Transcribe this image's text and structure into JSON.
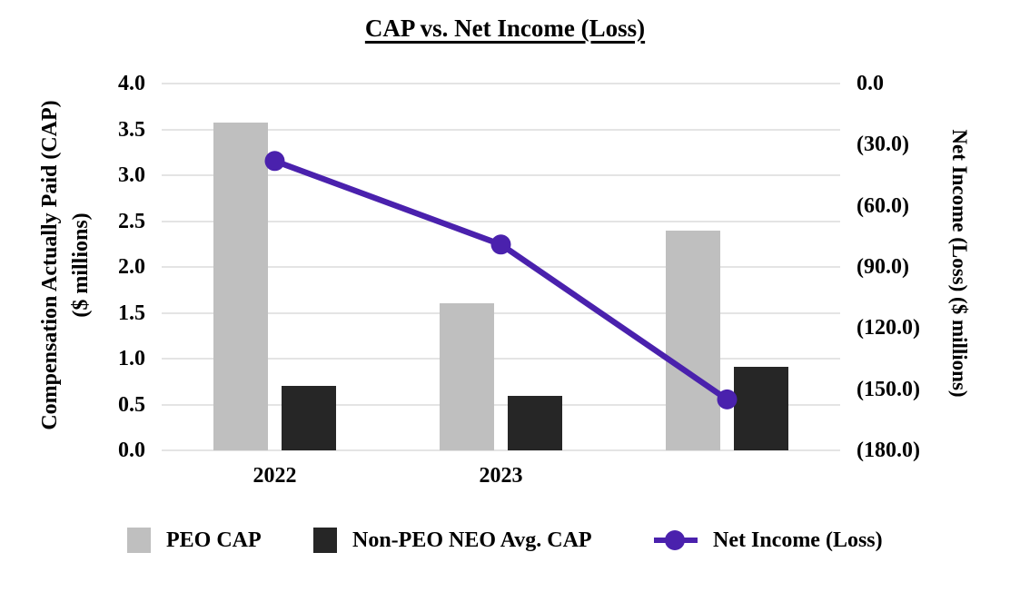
{
  "chart": {
    "title": "CAP vs. Net Income (Loss)",
    "left_axis": {
      "title_line1": "Compensation Actually Paid (CAP)",
      "title_line2": "($ millions)",
      "tick_labels": [
        "4.0",
        "3.5",
        "3.0",
        "2.5",
        "2.0",
        "1.5",
        "1.0",
        "0.5",
        "0.0"
      ]
    },
    "right_axis": {
      "title": "Net Income (Loss) ($ millions)",
      "tick_labels": [
        "0.0",
        "(30.0)",
        "(60.0)",
        "(90.0)",
        "(120.0)",
        "(150.0)",
        "(180.0)"
      ]
    },
    "legend": [
      {
        "label": "PEO CAP",
        "swatch": "bar",
        "color": "#bfbfbf"
      },
      {
        "label": "Non-PEO NEO Avg. CAP",
        "swatch": "bar",
        "color": "#262626"
      },
      {
        "label": "Net Income (Loss)",
        "swatch": "line-marker",
        "color": "#4a21ad"
      }
    ],
    "colors": {
      "peo_bar": "#bfbfbf",
      "non_peo_bar": "#262626",
      "net_income_line": "#4a21ad",
      "gridline": "#e4e4e4",
      "text": "#000000",
      "background": "#ffffff"
    }
  },
  "chart_data": {
    "type": "combo",
    "title": "CAP vs. Net Income (Loss)",
    "categories": [
      "2022",
      "2023",
      ""
    ],
    "series": [
      {
        "name": "PEO CAP",
        "type": "bar",
        "axis": "left",
        "color": "#bfbfbf",
        "values": [
          3.57,
          1.6,
          2.4
        ]
      },
      {
        "name": "Non-PEO NEO Avg. CAP",
        "type": "bar",
        "axis": "left",
        "color": "#262626",
        "values": [
          0.7,
          0.59,
          0.91
        ]
      },
      {
        "name": "Net Income (Loss)",
        "type": "line",
        "axis": "right",
        "color": "#4a21ad",
        "values": [
          -38.0,
          -79.0,
          -155.0
        ]
      }
    ],
    "left_axis": {
      "label": "Compensation Actually Paid (CAP) ($ millions)",
      "min": 0,
      "max": 4,
      "step": 0.5
    },
    "right_axis": {
      "label": "Net Income (Loss) ($ millions)",
      "min": -180,
      "max": 0,
      "step": 30,
      "negative_format": "parentheses"
    },
    "grid": true,
    "legend_position": "bottom"
  }
}
